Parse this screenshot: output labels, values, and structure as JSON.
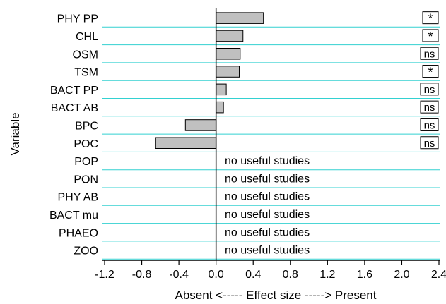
{
  "chart_data": {
    "type": "bar",
    "orientation": "horizontal",
    "ylabel": "Variable",
    "xlabel": "Absent <----- Effect size -----> Present",
    "xlim": [
      -1.2,
      2.4
    ],
    "xticks": [
      "-1.2",
      "-0.8",
      "-0.4",
      "0.0",
      "0.4",
      "0.8",
      "1.2",
      "1.6",
      "2.0",
      "2.4"
    ],
    "grid": "horizontal",
    "categories": [
      "PHY PP",
      "CHL",
      "OSM",
      "TSM",
      "BACT PP",
      "BACT AB",
      "BPC",
      "POC",
      "POP",
      "PON",
      "PHY AB",
      "BACT mu",
      "PHAEO",
      "ZOO"
    ],
    "values": [
      0.51,
      0.29,
      0.26,
      0.25,
      0.11,
      0.08,
      -0.33,
      -0.65,
      null,
      null,
      null,
      null,
      null,
      null
    ],
    "significance": [
      "*",
      "*",
      "ns",
      "*",
      "ns",
      "ns",
      "ns",
      "ns",
      "",
      "",
      "",
      "",
      "",
      ""
    ],
    "notes": [
      "",
      "",
      "",
      "",
      "",
      "",
      "",
      "",
      "no useful studies",
      "no useful studies",
      "no useful studies",
      "no useful studies",
      "no useful studies",
      "no useful studies"
    ],
    "colors": {
      "bar_fill": "#c0c0c0",
      "bar_stroke": "#000000",
      "gridline": "#33d1d1",
      "axis": "#000000"
    }
  }
}
